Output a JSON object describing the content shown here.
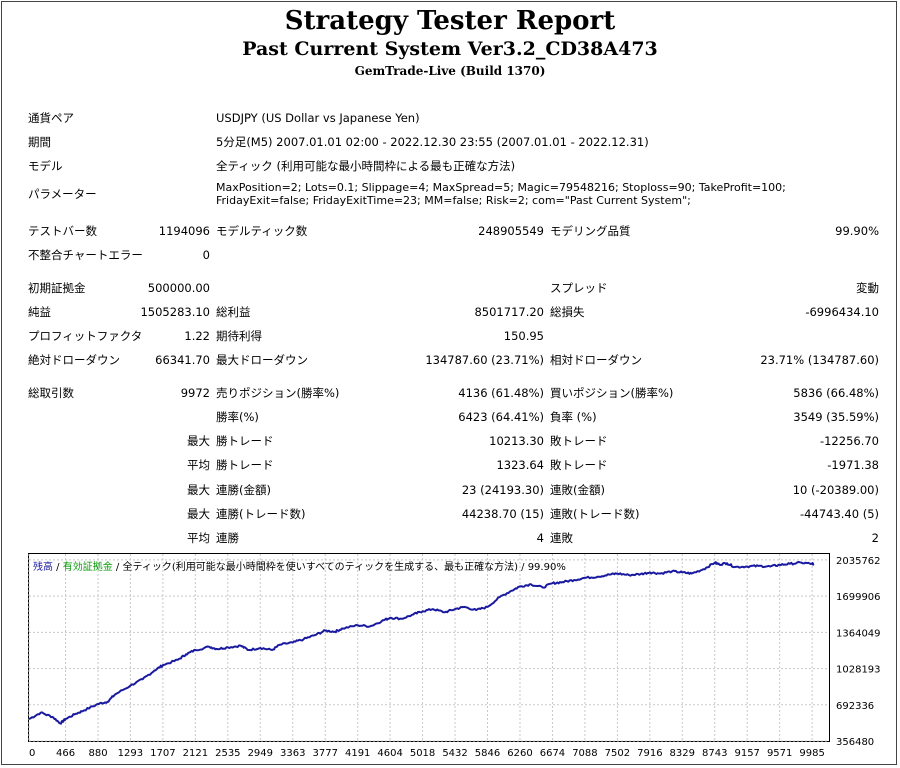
{
  "header": {
    "title": "Strategy Tester Report",
    "subtitle": "Past Current System Ver3.2_CD38A473",
    "server": "GemTrade-Live (Build 1370)"
  },
  "info": {
    "pair_label": "通貨ペア",
    "pair_value": "USDJPY (US Dollar vs Japanese Yen)",
    "period_label": "期間",
    "period_value": "5分足(M5) 2007.01.01 02:00 - 2022.12.30 23:55 (2007.01.01 - 2022.12.31)",
    "model_label": "モデル",
    "model_value": "全ティック (利用可能な最小時間枠による最も正確な方法)",
    "params_label": "パラメーター",
    "params_value": "MaxPosition=2; Lots=0.1; Slippage=4; MaxSpread=5; Magic=79548216; Stoploss=90; TakeProfit=100; FridayExit=false; FridayExitTime=23; MM=false; Risk=2; com=\"Past Current System\";"
  },
  "stats": {
    "bars_label": "テストバー数",
    "bars_value": "1194096",
    "ticks_label": "モデルティック数",
    "ticks_value": "248905549",
    "quality_label": "モデリング品質",
    "quality_value": "99.90%",
    "errors_label": "不整合チャートエラー",
    "errors_value": "0",
    "deposit_label": "初期証拠金",
    "deposit_value": "500000.00",
    "spread_label": "スプレッド",
    "spread_value": "変動",
    "net_label": "純益",
    "net_value": "1505283.10",
    "gross_profit_label": "総利益",
    "gross_profit_value": "8501717.20",
    "gross_loss_label": "総損失",
    "gross_loss_value": "-6996434.10",
    "pf_label": "プロフィットファクタ",
    "pf_value": "1.22",
    "expected_label": "期待利得",
    "expected_value": "150.95",
    "abs_dd_label": "絶対ドローダウン",
    "abs_dd_value": "66341.70",
    "max_dd_label": "最大ドローダウン",
    "max_dd_value": "134787.60 (23.71%)",
    "rel_dd_label": "相対ドローダウン",
    "rel_dd_value": "23.71% (134787.60)",
    "trades_label": "総取引数",
    "trades_value": "9972",
    "short_label": "売りポジション(勝率%)",
    "short_value": "4136 (61.48%)",
    "long_label": "買いポジション(勝率%)",
    "long_value": "5836 (66.48%)",
    "winrate_label": "勝率(%)",
    "winrate_value": "6423 (64.41%)",
    "lossrate_label": "負率 (%)",
    "lossrate_value": "3549 (35.59%)",
    "max_word": "最大",
    "avg_word": "平均",
    "maxwin_label": "勝トレード",
    "maxwin_value": "10213.30",
    "maxloss_label": "敗トレード",
    "maxloss_value": "-12256.70",
    "avgwin_label": "勝トレード",
    "avgwin_value": "1323.64",
    "avgloss_label": "敗トレード",
    "avgloss_value": "-1971.38",
    "consec_win_amt_label": "連勝(金額)",
    "consec_win_amt_value": "23 (24193.30)",
    "consec_loss_amt_label": "連敗(金額)",
    "consec_loss_amt_value": "10 (-20389.00)",
    "consec_win_cnt_label": "連勝(トレード数)",
    "consec_win_cnt_value": "44238.70 (15)",
    "consec_loss_cnt_label": "連敗(トレード数)",
    "consec_loss_cnt_value": "-44743.40 (5)",
    "avg_win_streak_label": "連勝",
    "avg_win_streak_value": "4",
    "avg_loss_streak_label": "連敗",
    "avg_loss_streak_value": "2"
  },
  "legend": {
    "balance": "残高",
    "sep1": " / ",
    "equity": "有効証拠金",
    "sep2": " / ",
    "rest": "全ティック(利用可能な最小時間枠を使いすべてのティックを生成する、最も正確な方法) / 99.90%"
  },
  "colors": {
    "line": "#1a1aa0",
    "balance_label": "#1a1aa0",
    "equity_label": "#0a9a0a",
    "grid": "#c8c8c8"
  },
  "chart_data": {
    "type": "line",
    "xticks": [
      0,
      466,
      880,
      1293,
      1707,
      2121,
      2535,
      2949,
      3363,
      3777,
      4191,
      4604,
      5018,
      5432,
      5846,
      6260,
      6674,
      7088,
      7502,
      7916,
      8329,
      8743,
      9157,
      9571,
      9985
    ],
    "yticks": [
      356480,
      692336,
      1028193,
      1364049,
      1699906,
      2035762
    ],
    "xlim": [
      0,
      10200
    ],
    "ylim": [
      356480,
      2100000
    ],
    "series": [
      {
        "name": "残高",
        "x": [
          0,
          150,
          300,
          400,
          466,
          600,
          700,
          880,
          1000,
          1100,
          1293,
          1450,
          1600,
          1707,
          1900,
          2000,
          2121,
          2300,
          2400,
          2535,
          2700,
          2800,
          2949,
          3100,
          3200,
          3363,
          3500,
          3650,
          3777,
          3900,
          4000,
          4191,
          4350,
          4500,
          4604,
          4750,
          4900,
          5018,
          5150,
          5300,
          5432,
          5550,
          5700,
          5846,
          6000,
          6150,
          6260,
          6400,
          6550,
          6674,
          6800,
          6950,
          7088,
          7250,
          7400,
          7502,
          7650,
          7800,
          7916,
          8050,
          8200,
          8329,
          8450,
          8600,
          8743,
          8800,
          8900,
          9000,
          9157,
          9300,
          9450,
          9571,
          9700,
          9850,
          9985,
          10000
        ],
        "y": [
          560000,
          620000,
          580000,
          520000,
          560000,
          610000,
          640000,
          700000,
          720000,
          790000,
          870000,
          930000,
          1010000,
          1060000,
          1110000,
          1160000,
          1200000,
          1230000,
          1210000,
          1225000,
          1240000,
          1200000,
          1220000,
          1200000,
          1250000,
          1270000,
          1300000,
          1340000,
          1380000,
          1370000,
          1400000,
          1430000,
          1420000,
          1470000,
          1500000,
          1490000,
          1530000,
          1560000,
          1580000,
          1550000,
          1580000,
          1600000,
          1570000,
          1600000,
          1690000,
          1750000,
          1790000,
          1810000,
          1780000,
          1820000,
          1830000,
          1850000,
          1870000,
          1880000,
          1900000,
          1910000,
          1895000,
          1905000,
          1920000,
          1910000,
          1930000,
          1920000,
          1910000,
          1950000,
          2010000,
          1995000,
          2005000,
          1970000,
          1975000,
          1980000,
          1975000,
          1990000,
          2000000,
          2010000,
          2000000,
          2000000
        ]
      }
    ]
  }
}
